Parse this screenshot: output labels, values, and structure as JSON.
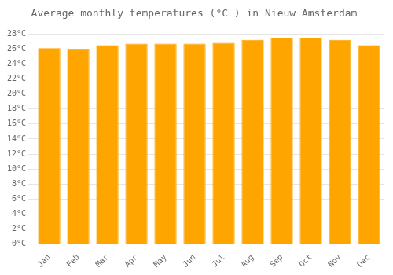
{
  "chart_data": {
    "type": "bar",
    "title": "Average monthly temperatures (°C ) in Nieuw Amsterdam",
    "categories": [
      "Jan",
      "Feb",
      "Mar",
      "Apr",
      "May",
      "Jun",
      "Jul",
      "Aug",
      "Sep",
      "Oct",
      "Nov",
      "Dec"
    ],
    "values": [
      26.1,
      26.0,
      26.5,
      26.7,
      26.7,
      26.7,
      26.8,
      27.2,
      27.5,
      27.5,
      27.2,
      26.5
    ],
    "color": "#FFA500",
    "ylim": [
      0,
      29
    ],
    "yticks": [
      {
        "value": 0,
        "label": "0°C"
      },
      {
        "value": 2,
        "label": "2°C"
      },
      {
        "value": 4,
        "label": "4°C"
      },
      {
        "value": 6,
        "label": "6°C"
      },
      {
        "value": 8,
        "label": "8°C"
      },
      {
        "value": 10,
        "label": "10°C"
      },
      {
        "value": 12,
        "label": "12°C"
      },
      {
        "value": 14,
        "label": "14°C"
      },
      {
        "value": 16,
        "label": "16°C"
      },
      {
        "value": 18,
        "label": "18°C"
      },
      {
        "value": 20,
        "label": "20°C"
      },
      {
        "value": 22,
        "label": "22°C"
      },
      {
        "value": 24,
        "label": "24°C"
      },
      {
        "value": 26,
        "label": "26°C"
      },
      {
        "value": 28,
        "label": "28°C"
      }
    ],
    "grid": true
  }
}
